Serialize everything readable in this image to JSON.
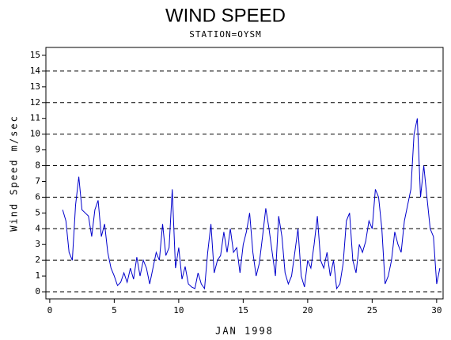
{
  "chart_data": {
    "type": "line",
    "title": "WIND SPEED",
    "subtitle": "STATION=OYSM",
    "x_label": "JAN 1998",
    "y_label": "Wind Speed m/sec",
    "xlim": [
      -0.3,
      30.5
    ],
    "ylim": [
      -0.45,
      15.5
    ],
    "xticks": [
      0,
      5,
      10,
      15,
      20,
      25,
      30
    ],
    "yticks": [
      0,
      1,
      2,
      3,
      4,
      5,
      6,
      7,
      8,
      9,
      10,
      11,
      12,
      13,
      14,
      15
    ],
    "hlines": [
      0,
      2,
      4,
      6,
      8,
      10,
      12,
      14
    ],
    "x": [
      1,
      1.25,
      1.5,
      1.75,
      2,
      2.25,
      2.5,
      2.75,
      3,
      3.25,
      3.5,
      3.75,
      4,
      4.25,
      4.5,
      4.75,
      5,
      5.25,
      5.5,
      5.75,
      6,
      6.25,
      6.5,
      6.75,
      7,
      7.25,
      7.5,
      7.75,
      8,
      8.25,
      8.5,
      8.75,
      9,
      9.25,
      9.5,
      9.75,
      10,
      10.25,
      10.5,
      10.75,
      11,
      11.25,
      11.5,
      11.75,
      12,
      12.25,
      12.5,
      12.75,
      13,
      13.25,
      13.5,
      13.75,
      14,
      14.25,
      14.5,
      14.75,
      15,
      15.25,
      15.5,
      15.75,
      16,
      16.25,
      16.5,
      16.75,
      17,
      17.25,
      17.5,
      17.75,
      18,
      18.25,
      18.5,
      18.75,
      19,
      19.25,
      19.5,
      19.75,
      20,
      20.25,
      20.5,
      20.75,
      21,
      21.25,
      21.5,
      21.75,
      22,
      22.25,
      22.5,
      22.75,
      23,
      23.25,
      23.5,
      23.75,
      24,
      24.25,
      24.5,
      24.75,
      25,
      25.25,
      25.5,
      25.75,
      26,
      26.25,
      26.5,
      26.75,
      27,
      27.25,
      27.5,
      27.75,
      28,
      28.25,
      28.5,
      28.75,
      29,
      29.25,
      29.5,
      29.75,
      30,
      30.25
    ],
    "series": [
      {
        "name": "Wind Speed",
        "color": "#0000cc",
        "values": [
          5.2,
          4.5,
          2.5,
          2.0,
          5.5,
          7.3,
          5.2,
          5.0,
          4.8,
          3.5,
          5.2,
          5.8,
          3.5,
          4.3,
          2.5,
          1.5,
          1.0,
          0.4,
          0.6,
          1.2,
          0.6,
          1.5,
          0.8,
          2.2,
          1.0,
          2.0,
          1.5,
          0.5,
          1.5,
          2.5,
          2.0,
          4.3,
          2.3,
          2.8,
          6.5,
          1.5,
          2.8,
          0.8,
          1.6,
          0.5,
          0.3,
          0.2,
          1.2,
          0.5,
          0.2,
          2.5,
          4.3,
          1.2,
          2.0,
          2.3,
          3.8,
          2.5,
          4.0,
          2.5,
          2.8,
          1.2,
          3.0,
          3.8,
          5.0,
          2.5,
          1.0,
          1.8,
          3.5,
          5.3,
          4.0,
          2.5,
          1.0,
          4.8,
          3.5,
          1.2,
          0.5,
          1.0,
          2.5,
          4.0,
          1.0,
          0.3,
          2.0,
          1.5,
          3.0,
          4.8,
          2.0,
          1.5,
          2.5,
          1.0,
          2.0,
          0.2,
          0.5,
          1.8,
          4.5,
          5.0,
          2.0,
          1.2,
          3.0,
          2.5,
          3.2,
          4.5,
          4.0,
          6.5,
          6.0,
          4.0,
          0.5,
          1.0,
          2.0,
          3.8,
          3.0,
          2.5,
          4.5,
          5.5,
          6.5,
          10.0,
          11.0,
          6.0,
          8.0,
          6.0,
          4.0,
          3.5,
          0.5,
          1.5
        ]
      }
    ]
  }
}
